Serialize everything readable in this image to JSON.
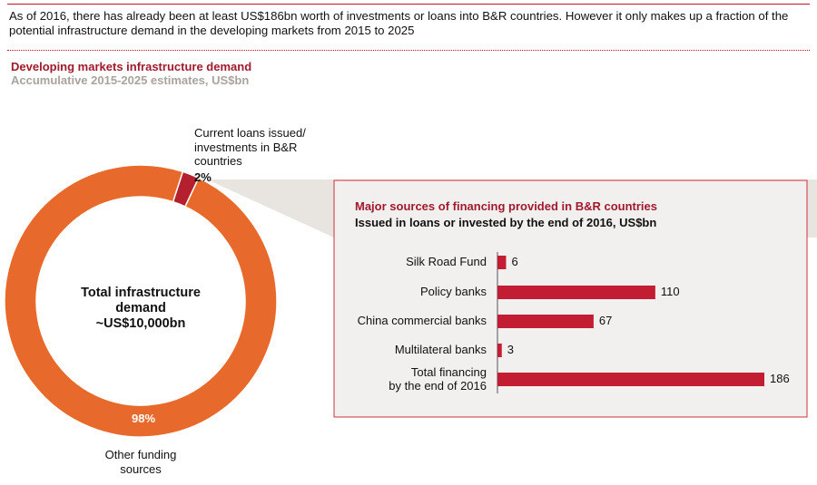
{
  "headline": "As of 2016, there has already been at least US$186bn worth of investments or loans into B&R countries. However it only makes up a fraction of the potential infrastructure demand in the developing markets from 2015 to 2025",
  "chart_data": [
    {
      "type": "pie",
      "title": "Developing markets infrastructure demand",
      "subtitle": "Accumulative 2015-2025 estimates, US$bn",
      "center_label": [
        "Total infrastructure",
        "demand",
        "~US$10,000bn"
      ],
      "slices": [
        {
          "label": [
            "Current loans issued/",
            "investments in B&R",
            "countries"
          ],
          "value": 2,
          "value_label": "2%",
          "color": "#b5202e"
        },
        {
          "label": [
            "Other funding",
            "sources"
          ],
          "value": 98,
          "value_label": "98%",
          "color": "#e8692c"
        }
      ]
    },
    {
      "type": "bar",
      "orientation": "horizontal",
      "title": "Major sources of financing provided in B&R countries",
      "subtitle": "Issued in loans or invested by the end of 2016, US$bn",
      "categories": [
        [
          "Silk Road Fund"
        ],
        [
          "Policy banks"
        ],
        [
          "China commercial banks"
        ],
        [
          "Multilateral banks"
        ],
        [
          "Total financing",
          "by the end of 2016"
        ]
      ],
      "values": [
        6,
        110,
        67,
        3,
        186
      ],
      "value_labels": [
        "6",
        "110",
        "67",
        "3",
        "186"
      ],
      "color": "#c21d33",
      "xlim": [
        0,
        186
      ]
    }
  ]
}
